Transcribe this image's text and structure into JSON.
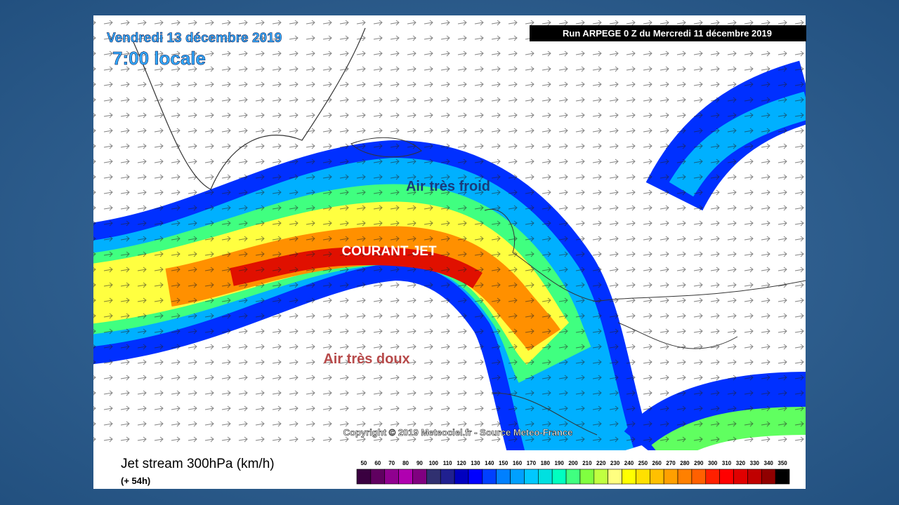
{
  "header": {
    "date": "Vendredi 13 décembre 2019",
    "time": "7:00 locale",
    "run": "Run ARPEGE 0 Z du Mercredi 11 décembre 2019"
  },
  "annotations": {
    "cold": "Air très froid",
    "jet": "COURANT JET",
    "warm": "Air très doux"
  },
  "copyright": "Copyright © 2019 Meteociel.fr - Source Meteo-France",
  "legend": {
    "title": "Jet stream 300hPa (km/h)",
    "lead": "(+ 54h)",
    "scale": [
      50,
      60,
      70,
      80,
      90,
      100,
      110,
      120,
      130,
      140,
      150,
      160,
      170,
      180,
      190,
      200,
      210,
      220,
      230,
      240,
      250,
      260,
      270,
      280,
      290,
      300,
      310,
      320,
      330,
      340,
      350
    ],
    "colors": [
      "#3a0040",
      "#600060",
      "#900090",
      "#b000b0",
      "#800080",
      "#303070",
      "#202090",
      "#0000c0",
      "#0000ff",
      "#0040ff",
      "#0080ff",
      "#00a0ff",
      "#00c8ff",
      "#00e0e0",
      "#00ffc0",
      "#40ff80",
      "#80ff40",
      "#c0ff40",
      "#ffff80",
      "#ffff00",
      "#ffe000",
      "#ffc000",
      "#ffa000",
      "#ff8000",
      "#ff6000",
      "#ff2000",
      "#ff0000",
      "#e00000",
      "#c00000",
      "#900000",
      "#000000"
    ]
  }
}
